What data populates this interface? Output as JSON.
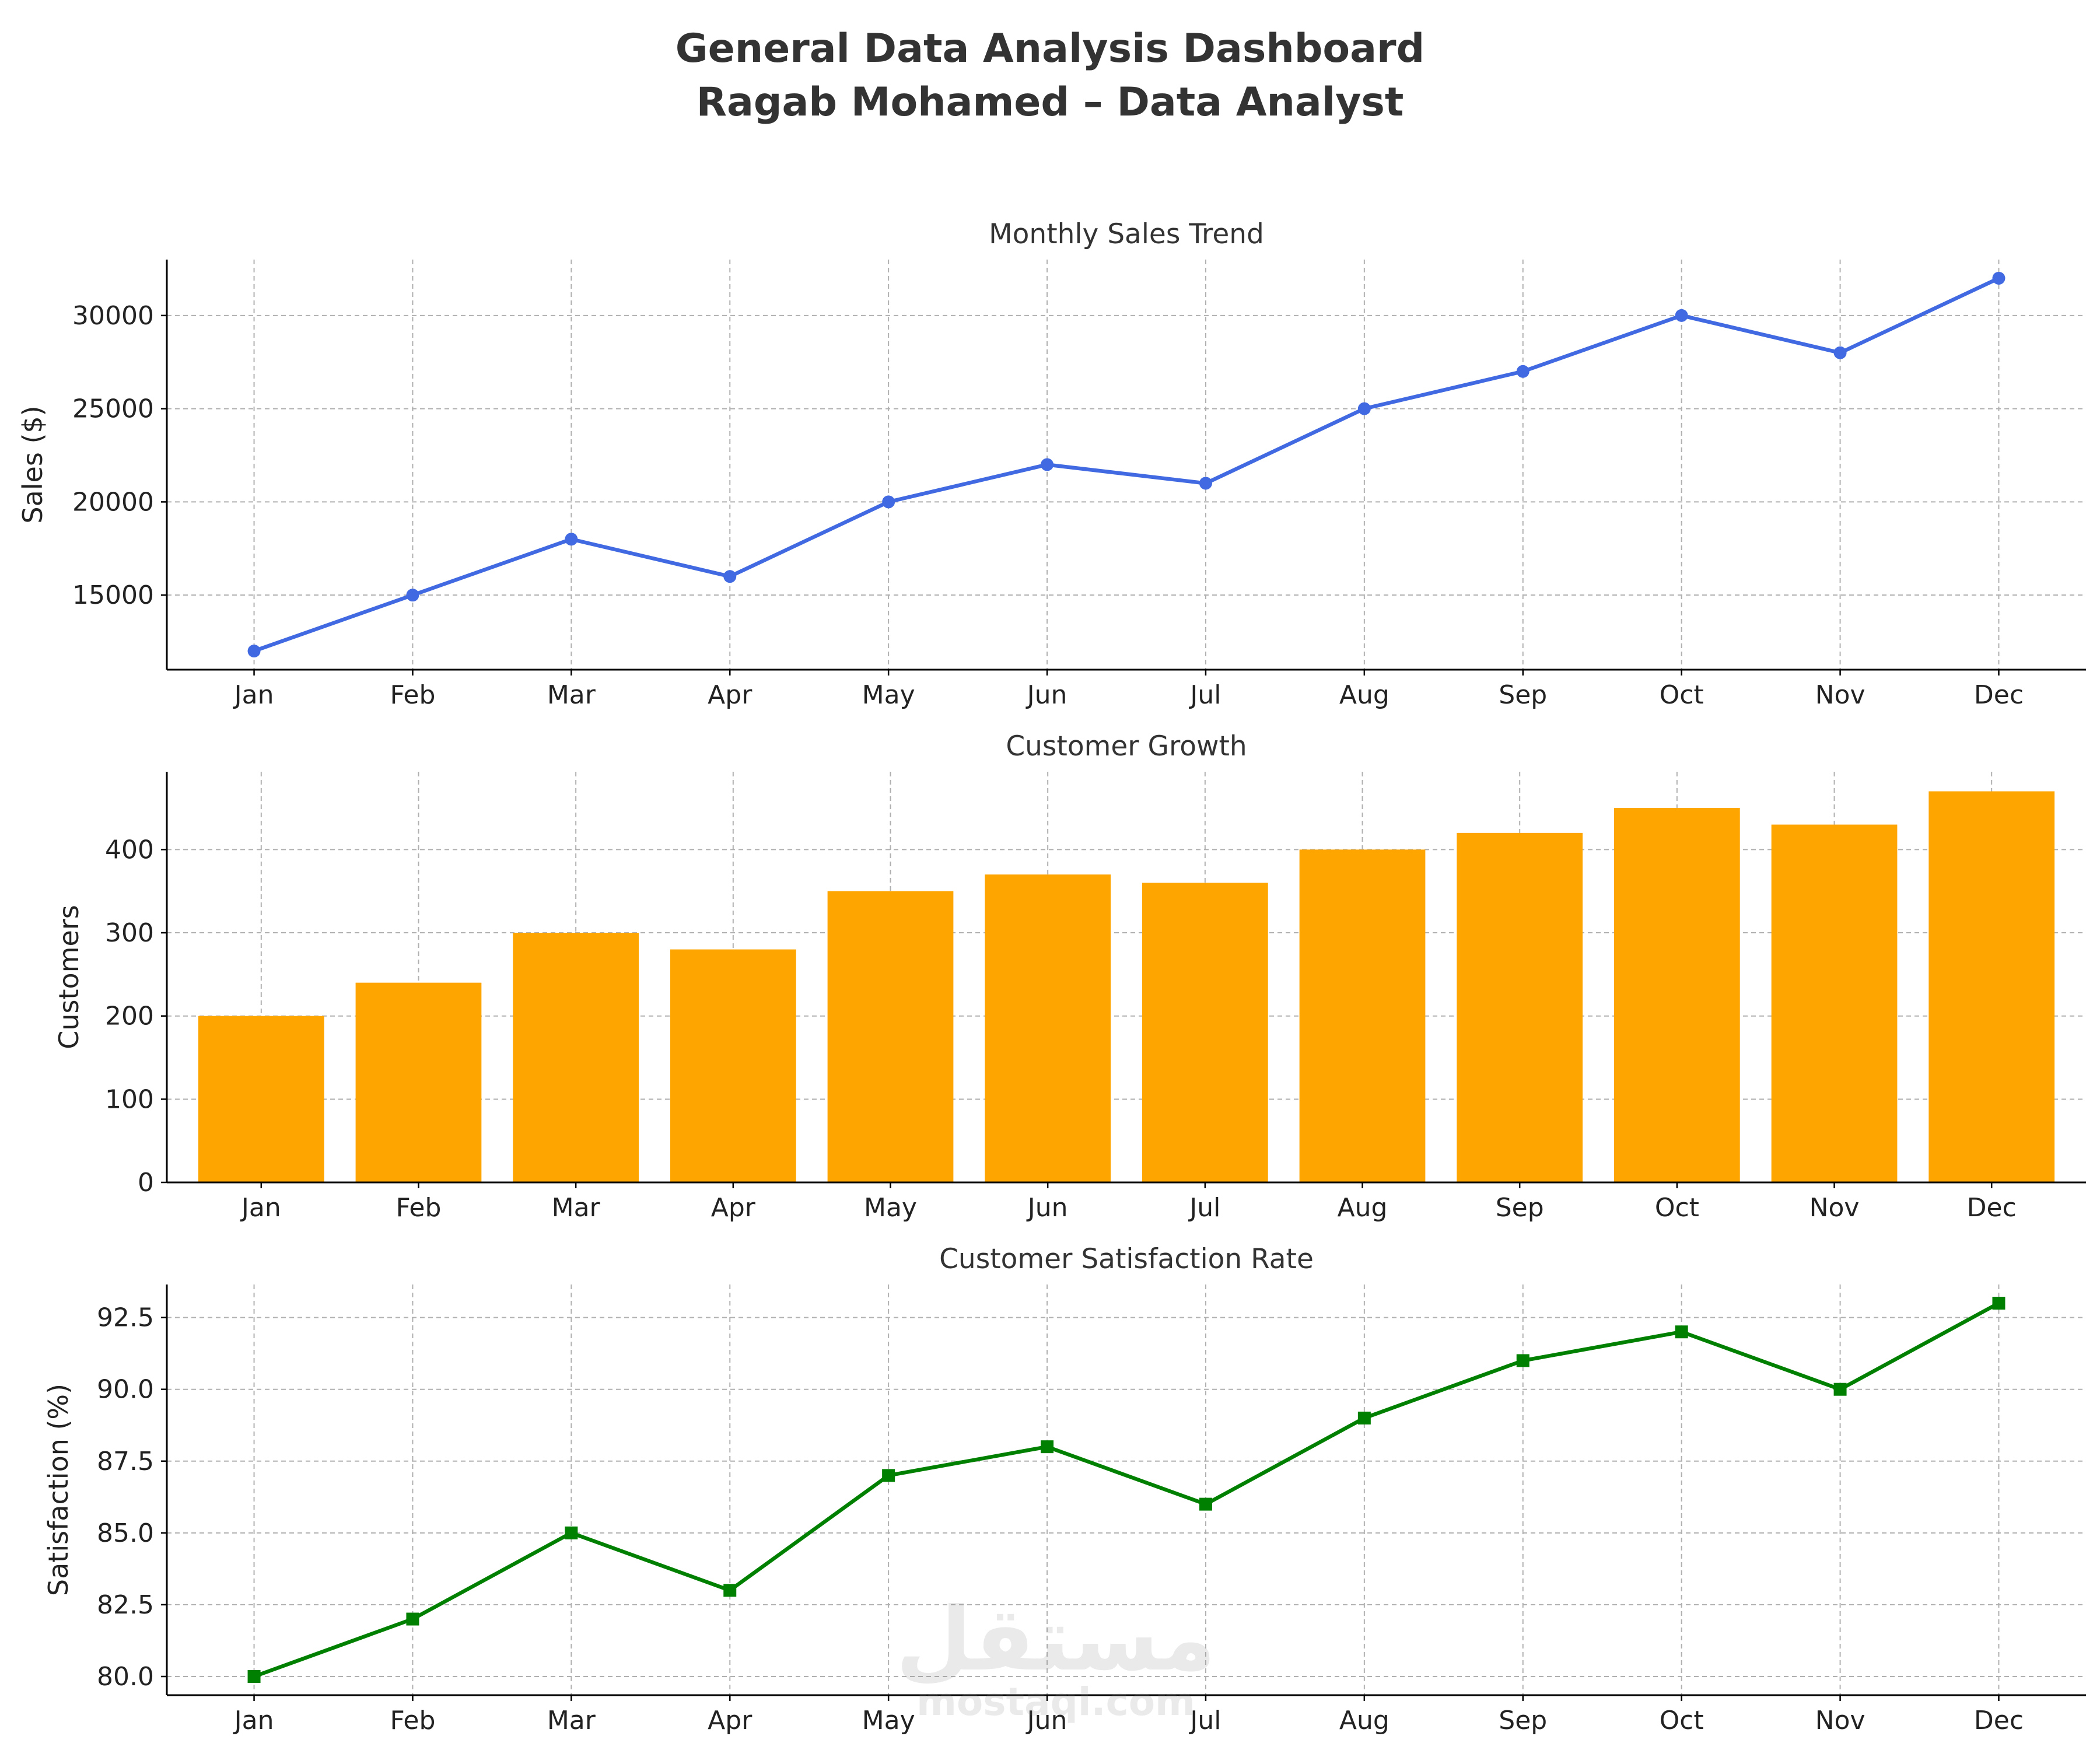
{
  "page": {
    "title_line1": "General Data Analysis Dashboard",
    "title_line2": "Ragab Mohamed – Data Analyst",
    "watermark_ar": "مستقل",
    "watermark_en": "mostaql.com"
  },
  "chart_data": [
    {
      "type": "line",
      "title": "Monthly Sales Trend",
      "xlabel": "",
      "ylabel": "Sales ($)",
      "categories": [
        "Jan",
        "Feb",
        "Mar",
        "Apr",
        "May",
        "Jun",
        "Jul",
        "Aug",
        "Sep",
        "Oct",
        "Nov",
        "Dec"
      ],
      "values": [
        12000,
        15000,
        18000,
        16000,
        20000,
        22000,
        21000,
        25000,
        27000,
        30000,
        28000,
        32000
      ],
      "yticks": [
        15000,
        20000,
        25000,
        30000
      ],
      "ylim": [
        11000,
        33000
      ],
      "color": "#4169e1",
      "marker": "circle",
      "grid": true
    },
    {
      "type": "bar",
      "title": "Customer Growth",
      "xlabel": "",
      "ylabel": "Customers",
      "categories": [
        "Jan",
        "Feb",
        "Mar",
        "Apr",
        "May",
        "Jun",
        "Jul",
        "Aug",
        "Sep",
        "Oct",
        "Nov",
        "Dec"
      ],
      "values": [
        200,
        240,
        300,
        280,
        350,
        370,
        360,
        400,
        420,
        450,
        430,
        470
      ],
      "yticks": [
        0,
        100,
        200,
        300,
        400
      ],
      "ylim": [
        0,
        493.5
      ],
      "color": "#ffa500",
      "grid": true
    },
    {
      "type": "line",
      "title": "Customer Satisfaction Rate",
      "xlabel": "",
      "ylabel": "Satisfaction (%)",
      "categories": [
        "Jan",
        "Feb",
        "Mar",
        "Apr",
        "May",
        "Jun",
        "Jul",
        "Aug",
        "Sep",
        "Oct",
        "Nov",
        "Dec"
      ],
      "values": [
        80,
        82,
        85,
        83,
        87,
        88,
        86,
        89,
        91,
        92,
        90,
        93
      ],
      "yticks": [
        80.0,
        82.5,
        85.0,
        87.5,
        90.0,
        92.5
      ],
      "ylim": [
        79.35,
        93.65
      ],
      "color": "#008000",
      "marker": "square",
      "grid": true
    }
  ]
}
